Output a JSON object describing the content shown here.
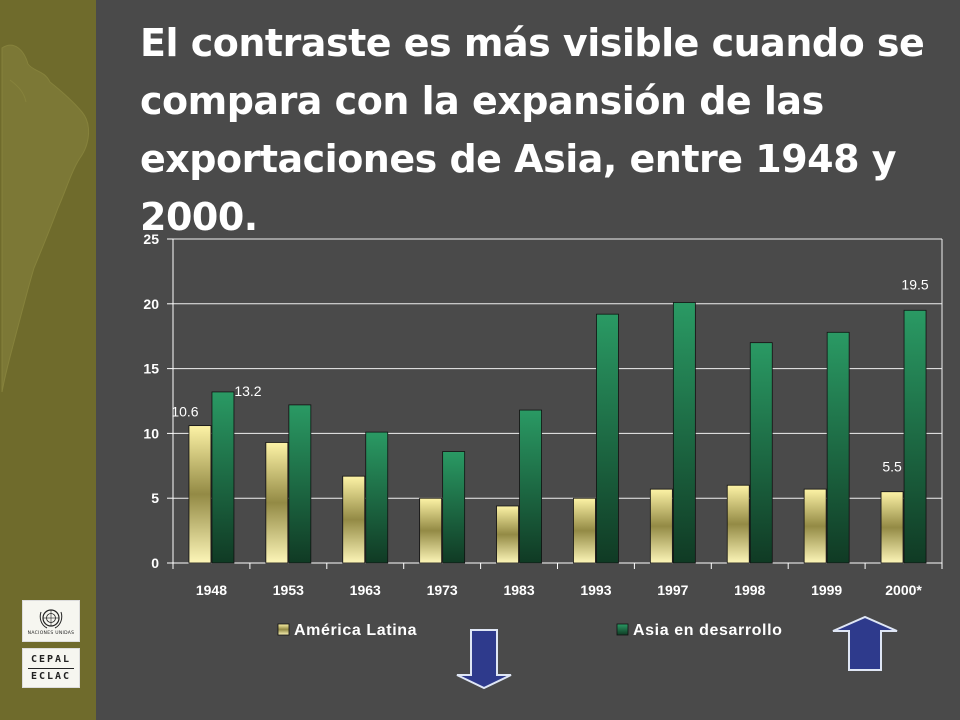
{
  "title": "El contraste es más visible cuando se compara con la expansión de las exportaciones de Asia, entre 1948 y 2000.",
  "logos": {
    "un_text": "NACIONES UNIDAS",
    "cepal": "CEPAL",
    "eclac": "ECLAC"
  },
  "colors": {
    "background": "#4a4a4a",
    "sidebar": "#6f6b2c",
    "arrow": "#2e3a8c"
  },
  "chart_data": {
    "type": "bar",
    "categories": [
      "1948",
      "1953",
      "1963",
      "1973",
      "1983",
      "1993",
      "1997",
      "1998",
      "1999",
      "2000*"
    ],
    "series": [
      {
        "name": "América Latina",
        "values": [
          10.6,
          9.3,
          6.7,
          5.0,
          4.4,
          5.0,
          5.7,
          6.0,
          5.7,
          5.5
        ]
      },
      {
        "name": "Asia en desarrollo",
        "values": [
          13.2,
          12.2,
          10.1,
          8.6,
          11.8,
          19.2,
          20.1,
          17.0,
          17.8,
          19.5
        ]
      }
    ],
    "ylim": [
      0,
      25
    ],
    "yticks": [
      0,
      5,
      10,
      15,
      20,
      25
    ],
    "grid": true,
    "legend_position": "bottom",
    "data_labels": [
      {
        "series": 0,
        "category": "1948",
        "text": "10.6"
      },
      {
        "series": 1,
        "category": "1948",
        "text": "13.2"
      },
      {
        "series": 0,
        "category": "2000*",
        "text": "5.5"
      },
      {
        "series": 1,
        "category": "2000*",
        "text": "19.5"
      }
    ],
    "annotations": [
      {
        "type": "arrow-down",
        "near": "América Latina"
      },
      {
        "type": "arrow-up",
        "near": "Asia en desarrollo"
      }
    ]
  }
}
